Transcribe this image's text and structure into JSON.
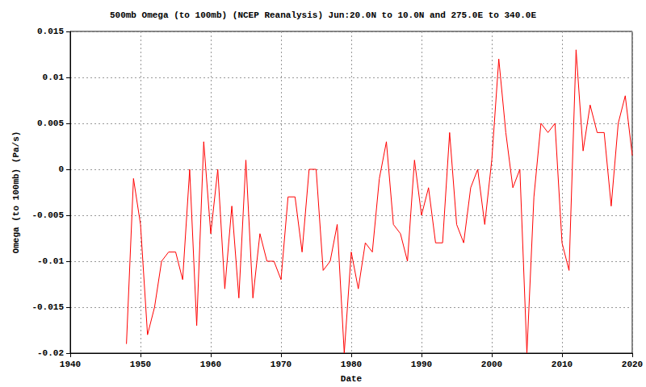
{
  "chart_data": {
    "type": "line",
    "title": "500mb Omega (to 100mb) (NCEP Reanalysis) Jun:20.0N to 10.0N and 275.0E to 340.0E",
    "x_label": "Date",
    "y_label": "Omega (to 100mb) (Pa/s)",
    "x": [
      1948,
      1949,
      1950,
      1951,
      1952,
      1953,
      1954,
      1955,
      1956,
      1957,
      1958,
      1959,
      1960,
      1961,
      1962,
      1963,
      1964,
      1965,
      1966,
      1967,
      1968,
      1969,
      1970,
      1971,
      1972,
      1973,
      1974,
      1975,
      1976,
      1977,
      1978,
      1979,
      1980,
      1981,
      1982,
      1983,
      1984,
      1985,
      1986,
      1987,
      1988,
      1989,
      1990,
      1991,
      1992,
      1993,
      1994,
      1995,
      1996,
      1997,
      1998,
      1999,
      2000,
      2001,
      2002,
      2003,
      2004,
      2005,
      2006,
      2007,
      2008,
      2009,
      2010,
      2011,
      2012,
      2013,
      2014,
      2015,
      2016,
      2017,
      2018,
      2019,
      2020
    ],
    "values": [
      -0.019,
      -0.001,
      -0.006,
      -0.018,
      -0.015,
      -0.01,
      -0.009,
      -0.009,
      -0.012,
      0,
      -0.017,
      0.003,
      -0.007,
      0,
      -0.013,
      -0.004,
      -0.014,
      0.001,
      -0.014,
      -0.007,
      -0.01,
      -0.01,
      -0.012,
      -0.003,
      -0.003,
      -0.009,
      0,
      0,
      -0.011,
      -0.01,
      -0.006,
      -0.02,
      -0.009,
      -0.013,
      -0.008,
      -0.009,
      -0.001,
      0.003,
      -0.006,
      -0.007,
      -0.01,
      0.001,
      -0.005,
      -0.002,
      -0.008,
      -0.008,
      0.004,
      -0.006,
      -0.008,
      -0.002,
      0,
      -0.006,
      0.001,
      0.012,
      0.004,
      -0.002,
      0,
      -0.02,
      -0.003,
      0.005,
      0.004,
      0.005,
      -0.008,
      -0.011,
      0.013,
      0.002,
      0.007,
      0.004,
      0.004,
      -0.004,
      0.005,
      0.008,
      0.0015
    ],
    "color": "#ff0000",
    "xlim": [
      1940,
      2020
    ],
    "xticks": [
      1940,
      1950,
      1960,
      1970,
      1980,
      1990,
      2000,
      2010,
      2020
    ],
    "ylim": [
      -0.02,
      0.015
    ],
    "yticks": [
      -0.02,
      -0.015,
      -0.01,
      -0.005,
      0,
      0.005,
      0.01,
      0.015
    ],
    "grid": true
  }
}
